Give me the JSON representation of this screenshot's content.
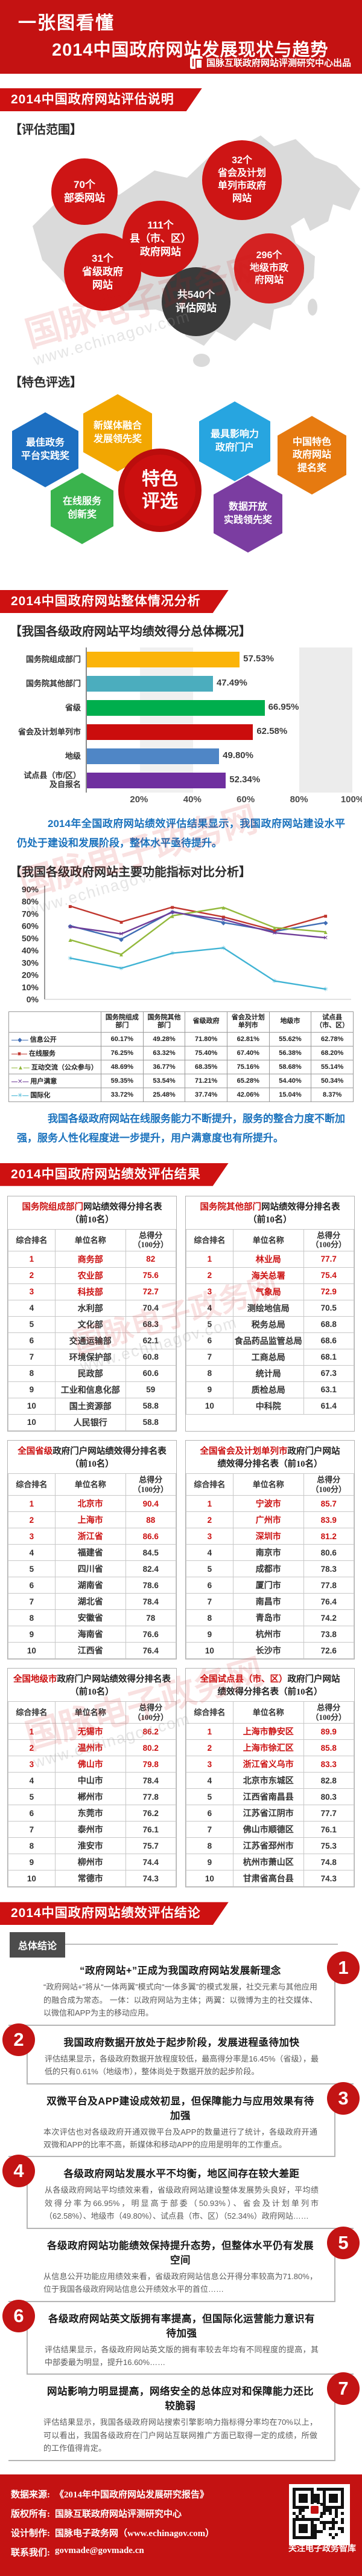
{
  "header": {
    "title_line1": "一张图看懂",
    "title_line2": "2014中国政府网站发展现状与趋势",
    "brand": "国脉互联政府网站评测研究中心出品"
  },
  "sections": {
    "s1": "2014中国政府网站评估说明",
    "s2": "2014中国政府网站整体情况分析",
    "s3": "2014中国政府网站绩效评估结果",
    "s4": "2014中国政府网站绩效评估结论"
  },
  "watermark": {
    "text": "国脉电子政务网",
    "url": "www.echinagov.com"
  },
  "scope": {
    "label": "【评估范围】",
    "bubbles": [
      {
        "text": "70个\n部委网站",
        "color": "#ce1515"
      },
      {
        "text": "111个\n县（市、区）\n政府网站",
        "color": "#ce1515"
      },
      {
        "text": "32个\n省会及计划\n单列市政府\n网站",
        "color": "#ce1515"
      },
      {
        "text": "31个\n省级政府\n网站",
        "color": "#ce1515"
      },
      {
        "text": "296个\n地级市政\n府网站",
        "color": "#d42222"
      },
      {
        "text": "共540个\n评估网站",
        "color": "#3a3a3a"
      }
    ]
  },
  "awards": {
    "label": "【特色评选】",
    "center": "特色\n评选",
    "center_color": "#cb0f0f",
    "items": [
      {
        "label": "最佳政务\n平台实践奖",
        "color": "#1d6fc1"
      },
      {
        "label": "新媒体融合\n发展领先奖",
        "color": "#f2a702"
      },
      {
        "label": "在线服务\n创新奖",
        "color": "#3ab34d"
      },
      {
        "label": "最具影响力\n政府门户",
        "color": "#27a5e0"
      },
      {
        "label": "数据开放\n实践领先奖",
        "color": "#7b3da1"
      },
      {
        "label": "中国特色\n政府网站\n提名奖",
        "color": "#e67a10"
      }
    ]
  },
  "analysis": {
    "sub1": "【我国各级政府网站平均绩效得分总体概况】",
    "note1": "2014年全国政府网站绩效评估结果显示，我国政府网站建设水平仍处于建设和发展阶段，整体水平亟待提升。",
    "sub2": "【我国各级政府网站主要功能指标对比分析】",
    "note2": "我国各级政府网站在线服务能力不断提升，服务的整合力度不断加强，服务人性化程度进一步提升，用户满意度也有所提升。"
  },
  "chart_data": [
    {
      "type": "bar",
      "title": "我国各级政府网站平均绩效得分总体概况",
      "categories": [
        "国务院组成部门",
        "国务院其他部门",
        "省级",
        "省会及计划单列市",
        "地级",
        "试点县（市/区）\n及自报名"
      ],
      "values": [
        57.53,
        47.49,
        66.95,
        62.58,
        49.8,
        52.34
      ],
      "value_labels": [
        "57.53%",
        "47.49%",
        "66.95%",
        "62.58%",
        "49.80%",
        "52.34%"
      ],
      "colors": [
        "#fbb40a",
        "#4badbe",
        "#00ae4d",
        "#cb0d0d",
        "#4f86c6",
        "#6f2f9f"
      ],
      "xlabel": "",
      "ylabel": "",
      "xlim": [
        0,
        100
      ],
      "x_ticks": [
        "20%",
        "40%",
        "60%",
        "80%",
        "100%"
      ]
    },
    {
      "type": "line",
      "title": "我国各级政府网站主要功能指标对比分析",
      "categories": [
        "国务院组成部门",
        "国务院其他部门",
        "省级政府",
        "省会及计划单列市",
        "地级市",
        "试点县（市、区）"
      ],
      "ylim": [
        0,
        90
      ],
      "y_ticks": [
        "0%",
        "10%",
        "20%",
        "30%",
        "40%",
        "50%",
        "60%",
        "70%",
        "80%",
        "90%"
      ],
      "legend_position": "table-left",
      "grid": false,
      "series": [
        {
          "name": "信息公开",
          "marker": "◆",
          "color": "#3f6cb4",
          "values": [
            60.17,
            49.28,
            71.8,
            62.81,
            55.62,
            62.78
          ]
        },
        {
          "name": "在线服务",
          "marker": "■",
          "color": "#c0362e",
          "values": [
            76.25,
            63.32,
            75.4,
            67.4,
            56.38,
            68.2
          ]
        },
        {
          "name": "互动交流（公众参与）",
          "marker": "▲",
          "color": "#93b93c",
          "values": [
            48.69,
            36.77,
            68.35,
            75.16,
            58.68,
            55.14
          ]
        },
        {
          "name": "用户满意",
          "marker": "✕",
          "color": "#6f3d98",
          "values": [
            59.35,
            53.54,
            71.21,
            65.28,
            54.4,
            50.34
          ]
        },
        {
          "name": "国际化",
          "marker": "✳",
          "color": "#3fb3d4",
          "values": [
            33.72,
            25.48,
            37.74,
            42.06,
            15.04,
            8.37
          ]
        }
      ]
    }
  ],
  "results": {
    "columns": [
      "综合排名",
      "单位名称",
      "总得分\n（100分）"
    ],
    "tables": [
      {
        "title_red": "国务院组成部门",
        "title_black": "网站绩效得分排名表",
        "subtitle": "（前10名）",
        "rows": [
          [
            "1",
            "商务部",
            "82"
          ],
          [
            "2",
            "农业部",
            "75.6"
          ],
          [
            "3",
            "科技部",
            "72.7"
          ],
          [
            "4",
            "水利部",
            "70.4"
          ],
          [
            "5",
            "文化部",
            "68.3"
          ],
          [
            "6",
            "交通运输部",
            "62.1"
          ],
          [
            "7",
            "环境保护部",
            "60.8"
          ],
          [
            "8",
            "民政部",
            "60.6"
          ],
          [
            "9",
            "工业和信息化部",
            "59"
          ],
          [
            "10",
            "国土资源部",
            "58.8"
          ],
          [
            "10",
            "人民银行",
            "58.8"
          ]
        ]
      },
      {
        "title_red": "国务院其他部门",
        "title_black": "网站绩效得分排名表",
        "subtitle": "（前10名）",
        "rows": [
          [
            "1",
            "林业局",
            "77.7"
          ],
          [
            "2",
            "海关总署",
            "75.4"
          ],
          [
            "3",
            "气象局",
            "72.9"
          ],
          [
            "4",
            "测绘地信局",
            "70.5"
          ],
          [
            "5",
            "税务总局",
            "68.8"
          ],
          [
            "6",
            "食品药品监管总局",
            "68.6"
          ],
          [
            "7",
            "工商总局",
            "68.1"
          ],
          [
            "8",
            "统计局",
            "67.3"
          ],
          [
            "9",
            "质检总局",
            "63.1"
          ],
          [
            "10",
            "中科院",
            "61.4"
          ]
        ]
      },
      {
        "title_red": "全国省级",
        "title_black": "政府门户网站绩效得分排名表",
        "subtitle": "（前10名）",
        "rows": [
          [
            "1",
            "北京市",
            "90.4"
          ],
          [
            "2",
            "上海市",
            "88"
          ],
          [
            "3",
            "浙江省",
            "86.6"
          ],
          [
            "4",
            "福建省",
            "84.5"
          ],
          [
            "5",
            "四川省",
            "82.4"
          ],
          [
            "6",
            "湖南省",
            "78.6"
          ],
          [
            "7",
            "湖北省",
            "78.4"
          ],
          [
            "8",
            "安徽省",
            "78"
          ],
          [
            "9",
            "海南省",
            "76.6"
          ],
          [
            "10",
            "江西省",
            "76.4"
          ]
        ]
      },
      {
        "title_red": "全国省会及计划单列市",
        "title_black": "政府门户网站",
        "subtitle": "绩效得分排名表（前10名）",
        "rows": [
          [
            "1",
            "宁波市",
            "85.7"
          ],
          [
            "2",
            "广州市",
            "83.9"
          ],
          [
            "3",
            "深圳市",
            "81.2"
          ],
          [
            "4",
            "南京市",
            "80.6"
          ],
          [
            "5",
            "成都市",
            "78.3"
          ],
          [
            "6",
            "厦门市",
            "77.8"
          ],
          [
            "7",
            "南昌市",
            "76.4"
          ],
          [
            "8",
            "青岛市",
            "74.2"
          ],
          [
            "9",
            "杭州市",
            "73.8"
          ],
          [
            "10",
            "长沙市",
            "72.6"
          ]
        ]
      },
      {
        "title_red": "全国地级市",
        "title_black": "政府门户网站绩效得分排名表",
        "subtitle": "（前10名）",
        "rows": [
          [
            "1",
            "无锡市",
            "86.2"
          ],
          [
            "2",
            "温州市",
            "80.2"
          ],
          [
            "3",
            "佛山市",
            "79.8"
          ],
          [
            "4",
            "中山市",
            "78.4"
          ],
          [
            "5",
            "郴州市",
            "77.8"
          ],
          [
            "6",
            "东莞市",
            "76.2"
          ],
          [
            "7",
            "泰州市",
            "76.1"
          ],
          [
            "8",
            "淮安市",
            "75.7"
          ],
          [
            "9",
            "柳州市",
            "74.4"
          ],
          [
            "10",
            "常德市",
            "74.3"
          ]
        ]
      },
      {
        "title_red": "全国试点县（市、区）",
        "title_black": "政府门户网站",
        "subtitle": "绩效得分排名表（前10名）",
        "rows": [
          [
            "1",
            "上海市静安区",
            "89.9"
          ],
          [
            "2",
            "上海市徐汇区",
            "85.8"
          ],
          [
            "3",
            "浙江省义乌市",
            "83.3"
          ],
          [
            "4",
            "北京市东城区",
            "82.8"
          ],
          [
            "5",
            "江西省南昌县",
            "80.3"
          ],
          [
            "6",
            "江苏省江阴市",
            "77.7"
          ],
          [
            "7",
            "佛山市顺德区",
            "76.1"
          ],
          [
            "8",
            "江苏省邳州市",
            "75.3"
          ],
          [
            "9",
            "杭州市萧山区",
            "74.8"
          ],
          [
            "10",
            "甘肃省高台县",
            "74.3"
          ]
        ]
      }
    ]
  },
  "conclusions": {
    "badge": "总体结论",
    "items": [
      {
        "num": "1",
        "heading": "“政府网站+”正成为我国政府网站发展新理念",
        "body": "“政府网站+”将从“一体两翼”模式向“一体多翼”的模式发展，社交元素与其他应用的融合成为常态。 一体：以政府网站为主体；两翼：以微博为主的社交媒体、以微信和APP为主的移动应用。"
      },
      {
        "num": "2",
        "heading": "我国政府数据开放处于起步阶段，发展进程亟待加快",
        "body": "评估结果显示，各级政府数据开放程度较低，最高得分率是16.45%（省级），最低的只有0.61%（地级市），整体尚处于数据开放的起步阶段。"
      },
      {
        "num": "3",
        "heading": "双微平台及APP建设成效初显，但保障能力与应用效果有待加强",
        "body": "本次评估也对各级政府开通双微平台及APP的数量进行了统计，各级政府开通双微和APP的比率不高，新媒体和移动APP的应用是明年的工作重点。"
      },
      {
        "num": "4",
        "heading": "各级政府网站发展水平不均衡，地区间存在较大差距",
        "body": "从各级政府网站平均绩效来看，省级政府网站建设整体发展势头良好，平均绩效得分率为66.95%，明显高于部委（50.93%）、省会及计划单列市（62.58%）、地级市（49.80%）、试点县（市、区）（52.34%）政府网站……"
      },
      {
        "num": "5",
        "heading": "各级政府网站功能绩效保持提升态势，但整体水平仍有发展空间",
        "body": "从信息公开功能应用绩效来看，省级政府网站信息公开得分率较高为71.80%，位于我国各级政府网站信息公开绩效水平的首位……"
      },
      {
        "num": "6",
        "heading": "各级政府网站英文版拥有率提高，但国际化运营能力意识有待加强",
        "body": "评估结果显示，各级政府网站英文版的拥有率较去年均有不同程度的提高，其中部委最为明显，提升16.60%……"
      },
      {
        "num": "7",
        "heading": "网站影响力明显提高，网络安全的总体应对和保障能力还比较脆弱",
        "body": "评估结果显示，我国各级政府网站搜索引擎影响力指标得分率均在70%以上，可以看出，我国各级政府在门户网站互联网推广方面已取得一定的成绩，所做的工作值得肯定。"
      }
    ]
  },
  "footer": {
    "lines": [
      {
        "label": "数据来源:",
        "value": "《2014年中国政府网站发展研究报告》"
      },
      {
        "label": "版权所有:",
        "value": "国脉互联政府网站评测研究中心"
      },
      {
        "label": "设计制作:",
        "value": "国脉电子政务网（www.echinagov.com）"
      },
      {
        "label": "联系我们:",
        "value": "govmade@govmade.cn"
      }
    ],
    "qr_caption": "关注电子政务智库"
  }
}
